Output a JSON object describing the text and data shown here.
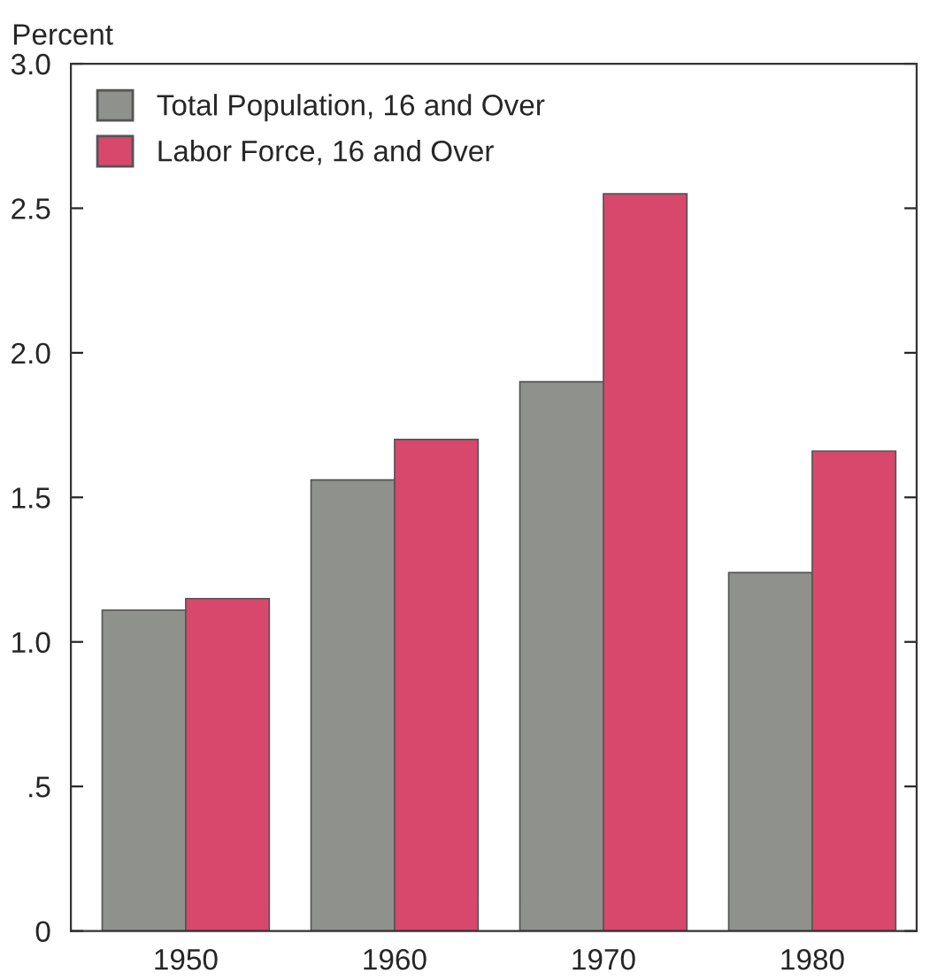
{
  "chart_data": {
    "type": "bar",
    "ylabel": "Percent",
    "categories": [
      "1950",
      "1960",
      "1970",
      "1980"
    ],
    "series": [
      {
        "name": "Total Population, 16 and Over",
        "color": "#8e918c",
        "values": [
          1.11,
          1.56,
          1.9,
          1.24
        ]
      },
      {
        "name": "Labor Force, 16 and Over",
        "color": "#d8486c",
        "values": [
          1.15,
          1.7,
          2.55,
          1.66
        ]
      }
    ],
    "ylim": [
      0,
      3.0
    ],
    "yticks": [
      0,
      {
        "value": 0.5,
        "label": ".5"
      },
      {
        "value": 1.0,
        "label": "1.0"
      },
      {
        "value": 1.5,
        "label": "1.5"
      },
      {
        "value": 2.0,
        "label": "2.0"
      },
      {
        "value": 2.5,
        "label": "2.5"
      },
      {
        "value": 3.0,
        "label": "3.0"
      }
    ],
    "grid": false,
    "legend": "top left"
  }
}
